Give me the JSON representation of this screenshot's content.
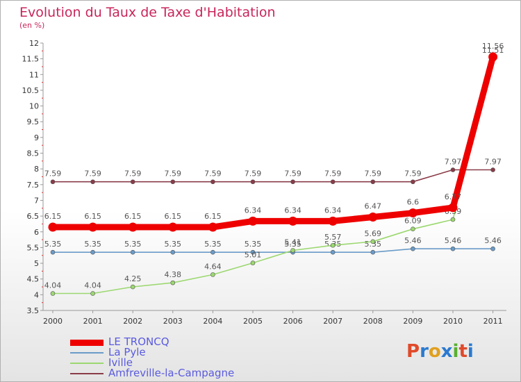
{
  "title": "Evolution du Taux de Taxe d'Habitation",
  "unit": "(en %)",
  "logo": {
    "text": "Proxiti",
    "colors": [
      "#e04a2a",
      "#2a7ad0",
      "#e0a020",
      "#2a7ad0",
      "#58b030",
      "#e04a2a",
      "#2a7ad0"
    ]
  },
  "chart_data": {
    "type": "line",
    "title": "Evolution du Taux de Taxe d'Habitation",
    "xlabel": "",
    "ylabel": "(en %)",
    "x": [
      "2000",
      "2001",
      "2002",
      "2003",
      "2004",
      "2005",
      "2006",
      "2007",
      "2008",
      "2009",
      "2010",
      "2011"
    ],
    "ylim": [
      3.5,
      12
    ],
    "yticks": [
      "3.5",
      "4",
      "4.5",
      "5",
      "5.5",
      "6",
      "6.5",
      "7",
      "7.5",
      "8",
      "8.5",
      "9",
      "9.5",
      "10",
      "10.5",
      "11",
      "11.5",
      "12"
    ],
    "grid": false,
    "legend_position": "bottom-left",
    "series": [
      {
        "name": "LE TRONCQ",
        "color": "#ee0000",
        "values": [
          6.15,
          6.15,
          6.15,
          6.15,
          6.15,
          6.34,
          6.34,
          6.34,
          6.47,
          6.6,
          6.77,
          11.56
        ],
        "labels": [
          "6.15",
          "6.15",
          "6.15",
          "6.15",
          "6.15",
          "6.34",
          "6.34",
          "6.34",
          "6.47",
          "6.6",
          "6.77",
          "11.56"
        ]
      },
      {
        "name": "La Pyle",
        "color": "#6a9bc8",
        "values": [
          5.35,
          5.35,
          5.35,
          5.35,
          5.35,
          5.35,
          5.35,
          5.35,
          5.35,
          5.46,
          5.46,
          5.46
        ],
        "labels": [
          "5.35",
          "5.35",
          "5.35",
          "5.35",
          "5.35",
          "5.35",
          "5.35",
          "5.35",
          "5.35",
          "5.46",
          "5.46",
          "5.46"
        ]
      },
      {
        "name": "Iville",
        "color": "#9cd870",
        "values": [
          4.04,
          4.04,
          4.25,
          4.38,
          4.64,
          5.01,
          5.41,
          5.57,
          5.69,
          6.09,
          6.39,
          11.51
        ],
        "labels": [
          "4.04",
          "4.04",
          "4.25",
          "4.38",
          "4.64",
          "5.01",
          "5.41",
          "5.57",
          "5.69",
          "6.09",
          "6.39",
          "11.51"
        ]
      },
      {
        "name": "Amfreville-la-Campagne",
        "color": "#8a3b48",
        "values": [
          7.59,
          7.59,
          7.59,
          7.59,
          7.59,
          7.59,
          7.59,
          7.59,
          7.59,
          7.59,
          7.97,
          7.97
        ],
        "labels": [
          "7.59",
          "7.59",
          "7.59",
          "7.59",
          "7.59",
          "7.59",
          "7.59",
          "7.59",
          "7.59",
          "7.59",
          "7.97",
          "7.97"
        ]
      }
    ]
  }
}
